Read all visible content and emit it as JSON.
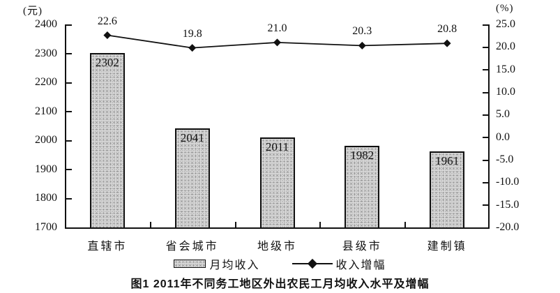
{
  "caption": "图1 2011年不同务工地区外出农民工月均收入水平及增幅",
  "legend": {
    "bar_label": "月均收入",
    "line_label": "收入增幅"
  },
  "colors": {
    "axis": "#111111",
    "bar_fill": "#d9d9d9",
    "bar_border": "#111111",
    "line": "#111111",
    "background": "#ffffff"
  },
  "chart_data": {
    "type": "bar",
    "subtype": "bar+line dual axis",
    "title": "图1 2011年不同务工地区外出农民工月均收入水平及增幅",
    "categories": [
      "直辖市",
      "省会城市",
      "地级市",
      "县级市",
      "建制镇"
    ],
    "series": [
      {
        "name": "月均收入",
        "type": "bar",
        "axis": "left",
        "values": [
          2302,
          2041,
          2011,
          1982,
          1961
        ]
      },
      {
        "name": "收入增幅",
        "type": "line",
        "axis": "right",
        "values": [
          22.6,
          19.8,
          21.0,
          20.3,
          20.8
        ]
      }
    ],
    "left_axis": {
      "unit": "(元)",
      "min": 1700,
      "max": 2400,
      "tick_labels": [
        "2400",
        "2300",
        "2200",
        "2100",
        "2000",
        "1900",
        "1800",
        "1700"
      ]
    },
    "right_axis": {
      "unit": "(%)",
      "min": -20,
      "max": 25,
      "tick_labels": [
        "25.0",
        "20.0",
        "15.0",
        "10.0",
        "5.0",
        "0.0",
        "-5.0",
        "-10.0",
        "-15.0",
        "-20.0"
      ]
    },
    "point_labels": [
      "22.6",
      "19.8",
      "21.0",
      "20.3",
      "20.8"
    ],
    "bar_labels": [
      "2302",
      "2041",
      "2011",
      "1982",
      "1961"
    ],
    "grid": false,
    "legend_position": "bottom"
  }
}
